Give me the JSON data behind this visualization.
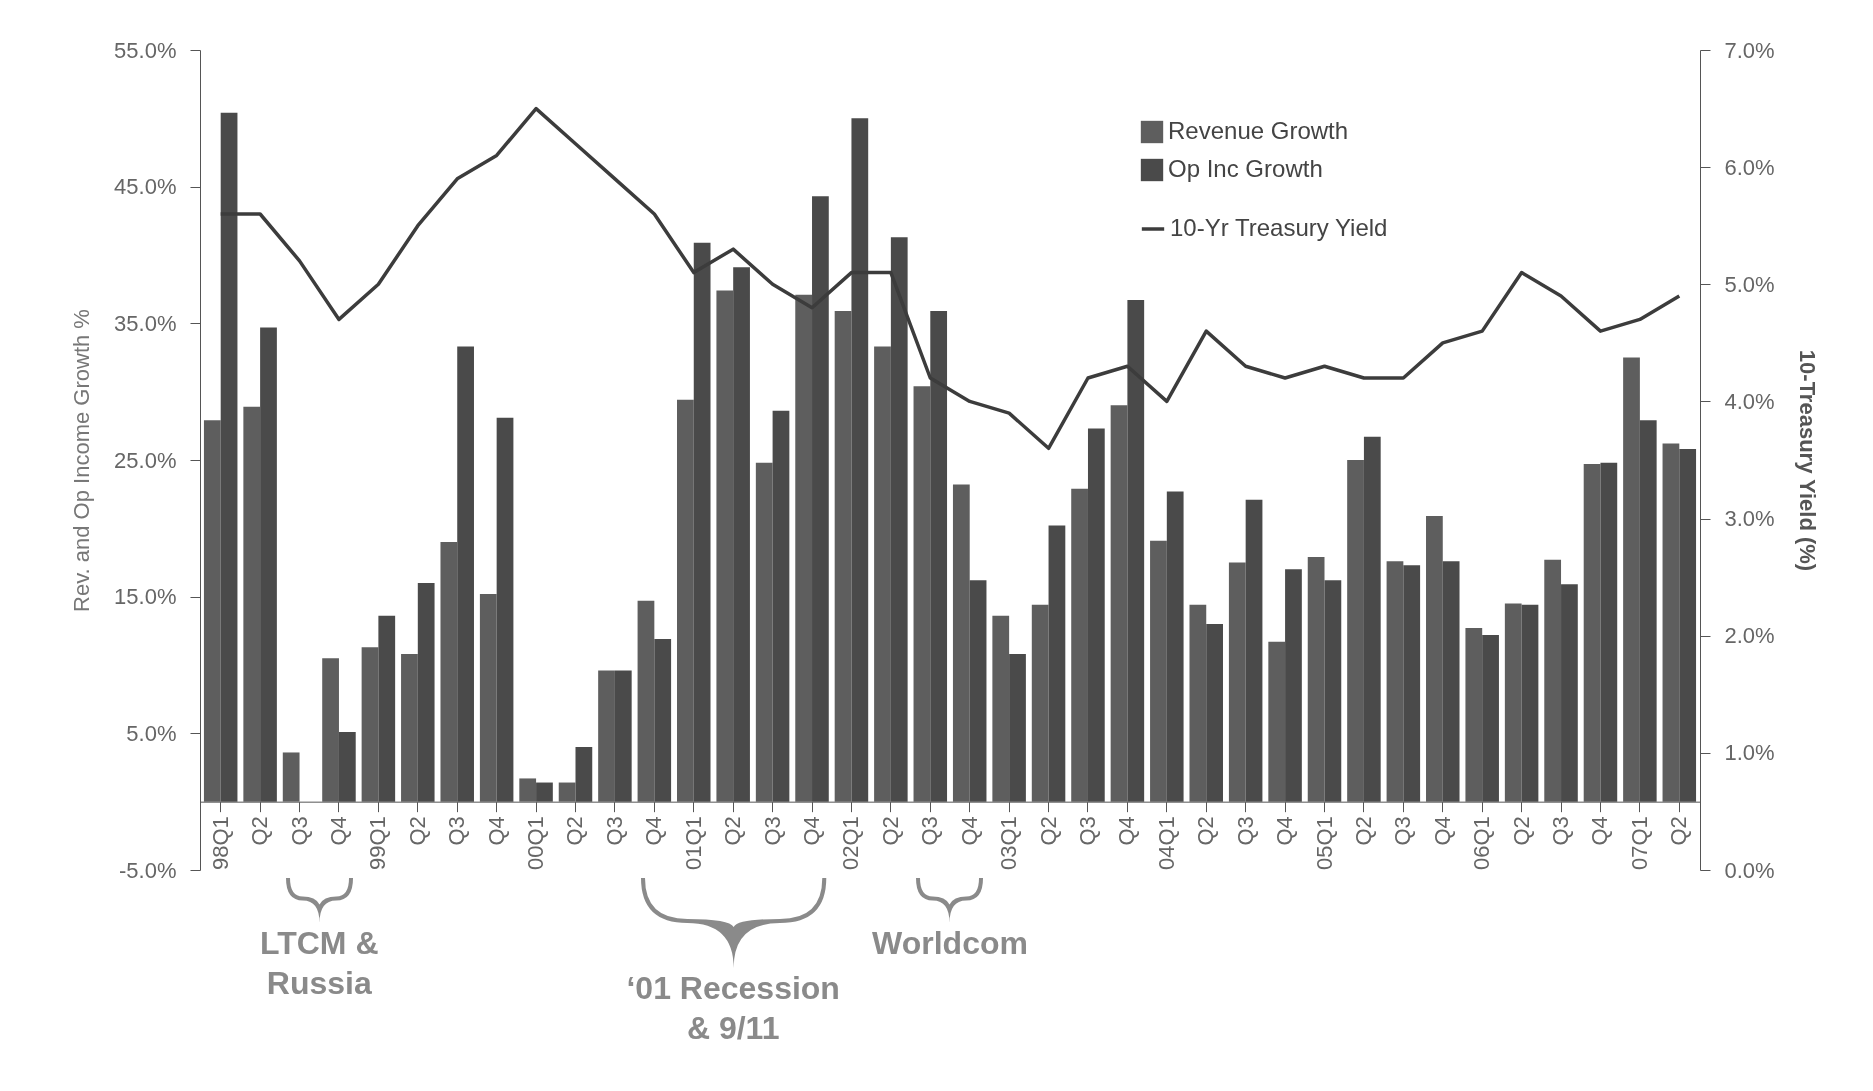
{
  "chart_data": {
    "type": "bar",
    "ylabel": "Rev. and Op Income Growth %",
    "y2label": "10-Treasury Yield (%)",
    "categories": [
      "98Q1",
      "Q2",
      "Q3",
      "Q4",
      "99Q1",
      "Q2",
      "Q3",
      "Q4",
      "00Q1",
      "Q2",
      "Q3",
      "Q4",
      "01Q1",
      "Q2",
      "Q3",
      "Q4",
      "02Q1",
      "Q2",
      "Q3",
      "Q4",
      "03Q1",
      "Q2",
      "Q3",
      "Q4",
      "04Q1",
      "Q2",
      "Q3",
      "Q4",
      "05Q1",
      "Q2",
      "Q3",
      "Q4",
      "06Q1",
      "Q2",
      "Q3",
      "Q4",
      "07Q1",
      "Q2"
    ],
    "series": [
      {
        "name": "Revenue Growth",
        "color": "#5e5e5e",
        "values": [
          27.9,
          28.9,
          3.6,
          10.5,
          11.3,
          10.8,
          19.0,
          15.2,
          1.7,
          1.4,
          9.6,
          14.7,
          29.4,
          37.4,
          24.8,
          37.1,
          35.9,
          33.3,
          30.4,
          23.2,
          13.6,
          14.4,
          22.9,
          29.0,
          19.1,
          14.4,
          17.5,
          11.7,
          17.9,
          25.0,
          17.6,
          20.9,
          12.7,
          14.5,
          17.7,
          24.7,
          32.5,
          26.2
        ]
      },
      {
        "name": "Op Inc Growth",
        "color": "#4a4a4a",
        "values": [
          50.4,
          34.7,
          null,
          5.1,
          13.6,
          16.0,
          33.3,
          28.1,
          1.4,
          4.0,
          9.6,
          11.9,
          40.9,
          39.1,
          28.6,
          44.3,
          50.0,
          41.3,
          35.9,
          16.2,
          10.8,
          20.2,
          27.3,
          36.7,
          22.7,
          13.0,
          22.1,
          17.0,
          16.2,
          26.7,
          17.3,
          17.6,
          12.2,
          14.4,
          15.9,
          24.8,
          27.9,
          25.8
        ]
      },
      {
        "name": "10-Yr Treasury Yield",
        "type": "line",
        "axis": "y2",
        "color": "#3c3c3c",
        "values": [
          5.6,
          5.6,
          5.2,
          4.7,
          5.0,
          5.5,
          5.9,
          6.1,
          6.5,
          6.2,
          5.9,
          5.6,
          5.1,
          5.3,
          5.0,
          4.8,
          5.1,
          5.1,
          4.2,
          4.0,
          3.9,
          3.6,
          4.2,
          4.3,
          4.0,
          4.6,
          4.3,
          4.2,
          4.3,
          4.2,
          4.2,
          4.5,
          4.6,
          5.1,
          4.9,
          4.6,
          4.7,
          4.9
        ]
      }
    ],
    "ylim": [
      -5,
      55
    ],
    "yticks": [
      {
        "value": -5,
        "label": "-5.0%"
      },
      {
        "value": 5,
        "label": "5.0%"
      },
      {
        "value": 15,
        "label": "15.0%"
      },
      {
        "value": 25,
        "label": "25.0%"
      },
      {
        "value": 35,
        "label": "35.0%"
      },
      {
        "value": 45,
        "label": "45.0%"
      },
      {
        "value": 55,
        "label": "55.0%"
      }
    ],
    "y2lim": [
      0,
      7
    ],
    "y2ticks": [
      {
        "value": 0,
        "label": "0.0%"
      },
      {
        "value": 1,
        "label": "1.0%"
      },
      {
        "value": 2,
        "label": "2.0%"
      },
      {
        "value": 3,
        "label": "3.0%"
      },
      {
        "value": 4,
        "label": "4.0%"
      },
      {
        "value": 5,
        "label": "5.0%"
      },
      {
        "value": 6,
        "label": "6.0%"
      },
      {
        "value": 7,
        "label": "7.0%"
      }
    ],
    "annotations": [
      "LTCM &\nRussia",
      "‘01 Recession\n& 9/11",
      "Worldcom"
    ],
    "legend": "top right",
    "grid": false
  }
}
